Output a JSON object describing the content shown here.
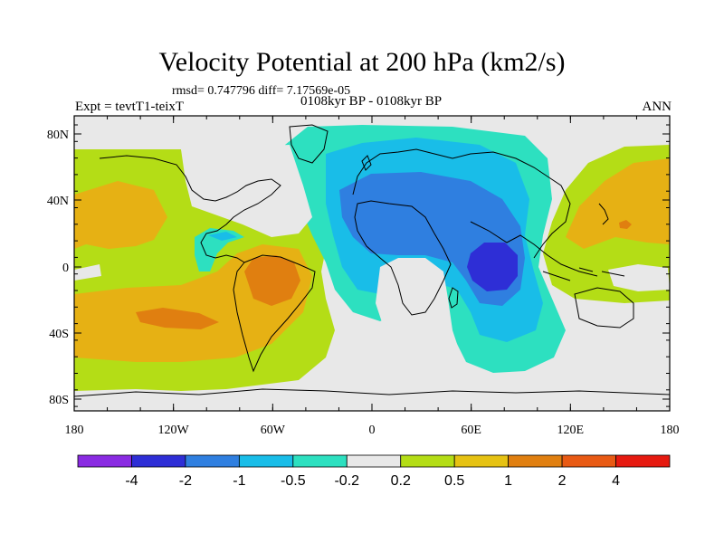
{
  "header": {
    "title": "Velocity Potential at 200 hPa (km2/s)",
    "stats": "rmsd= 0.747796 diff= 7.17569e-05",
    "left_label": "Expt = tevtT1-teixT",
    "center_label": "0108kyr BP - 0108kyr BP",
    "right_label": "ANN"
  },
  "axes": {
    "y_ticks": [
      "80N",
      "40N",
      "0",
      "40S",
      "80S"
    ],
    "x_ticks": [
      "180",
      "120W",
      "60W",
      "0",
      "60E",
      "120E",
      "180"
    ]
  },
  "colorbar": {
    "labels": [
      "-4",
      "-2",
      "-1",
      "-0.5",
      "-0.2",
      "0.2",
      "0.5",
      "1",
      "2",
      "4"
    ],
    "colors": [
      "#8a2be2",
      "#2e2ed6",
      "#2f7fe0",
      "#19bde8",
      "#2de0c0",
      "#e8e8e8",
      "#b4dd16",
      "#e6c213",
      "#e07f10",
      "#e85a14",
      "#e61a10"
    ]
  },
  "palette": {
    "background": "#e8e8e8",
    "pos_weak": "#b4dd16",
    "pos_mid": "#e6b114",
    "pos_strong": "#e07f10",
    "neg_weak": "#2de0c0",
    "neg_mid": "#19bde8",
    "neg_strong": "#2f7fe0",
    "neg_max": "#2e2ed6"
  }
}
